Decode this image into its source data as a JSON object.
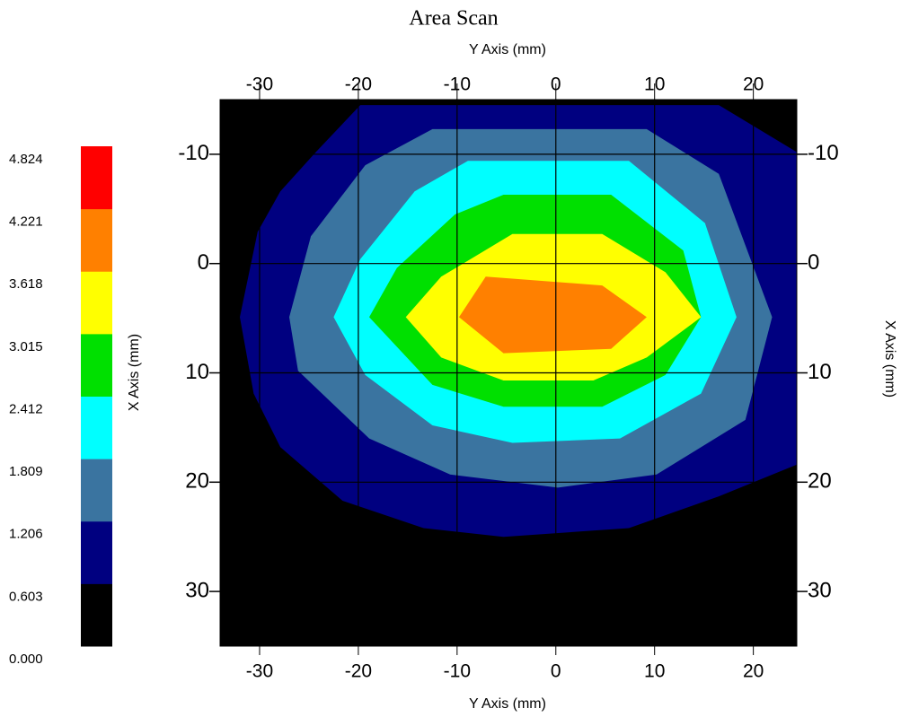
{
  "chart_data": {
    "type": "contour",
    "title": "Area Scan",
    "x_label": "Y Axis (mm)",
    "y_label": "X Axis (mm)",
    "xlim": [
      -34,
      24.4
    ],
    "ylim": [
      -15,
      35
    ],
    "y_inverted": true,
    "xticks": [
      -30,
      -20,
      -10,
      0,
      10,
      20
    ],
    "yticks": [
      -10,
      0,
      10,
      20,
      30
    ],
    "grid": true,
    "grid_color": "#000000",
    "colorbar": {
      "levels": [
        {
          "value": 0,
          "label": "0.000"
        },
        0.603,
        1.206,
        1.809,
        2.412,
        3.015,
        3.618,
        4.221,
        4.824
      ],
      "colors": [
        "#000000",
        "#000080",
        "#3a74a0",
        "#00ffff",
        "#00e000",
        "#ffff00",
        "#ff8000",
        "#ff0000"
      ]
    },
    "contours": [
      {
        "level": 0.603,
        "x": [
          -19.8,
          16.5,
          24.4,
          24.4,
          16.5,
          7.4,
          -5.3,
          -13.4,
          -21.6,
          -27.9,
          -30.6,
          -32.0,
          -30.2,
          -27.9,
          -24.3
        ],
        "y": [
          -14.5,
          -14.5,
          -10.2,
          18.4,
          21.3,
          24.2,
          25.0,
          24.2,
          21.7,
          16.8,
          11.9,
          4.9,
          -2.9,
          -6.6,
          -10.2
        ]
      },
      {
        "level": 1.206,
        "x": [
          -12.5,
          9.2,
          16.5,
          21.9,
          19.2,
          10.2,
          0.2,
          -10.7,
          -18.9,
          -26.1,
          -27.0,
          -24.8,
          -19.3
        ],
        "y": [
          -12.3,
          -12.3,
          -8.2,
          4.9,
          14.3,
          19.3,
          20.5,
          19.3,
          16.0,
          9.8,
          4.9,
          -2.5,
          -9.0
        ]
      },
      {
        "level": 1.809,
        "x": [
          -8.9,
          7.4,
          15.1,
          18.3,
          14.7,
          6.5,
          -4.4,
          -12.5,
          -19.3,
          -22.5,
          -19.8,
          -14.3
        ],
        "y": [
          -9.4,
          -9.4,
          -3.7,
          4.9,
          11.9,
          16.0,
          16.4,
          14.8,
          10.2,
          4.9,
          -0.4,
          -6.6
        ]
      },
      {
        "level": 2.412,
        "x": [
          -5.3,
          5.6,
          12.9,
          14.7,
          11.1,
          4.7,
          -5.3,
          -12.5,
          -18.9,
          -16.1,
          -10.2
        ],
        "y": [
          -6.3,
          -6.3,
          -1.2,
          4.9,
          10.2,
          13.1,
          13.1,
          11.1,
          4.9,
          0.4,
          -4.5
        ]
      },
      {
        "level": 3.015,
        "x": [
          -4.4,
          4.7,
          11.1,
          14.7,
          9.2,
          3.8,
          -5.3,
          -11.6,
          -15.2,
          -11.6
        ],
        "y": [
          -2.7,
          -2.7,
          0.8,
          4.9,
          8.6,
          10.7,
          10.7,
          8.6,
          4.9,
          1.2
        ]
      },
      {
        "level": 3.618,
        "x": [
          -7.1,
          4.7,
          9.2,
          5.6,
          -5.3,
          -9.8
        ],
        "y": [
          1.2,
          2.0,
          4.9,
          7.8,
          8.2,
          4.9
        ]
      }
    ]
  }
}
